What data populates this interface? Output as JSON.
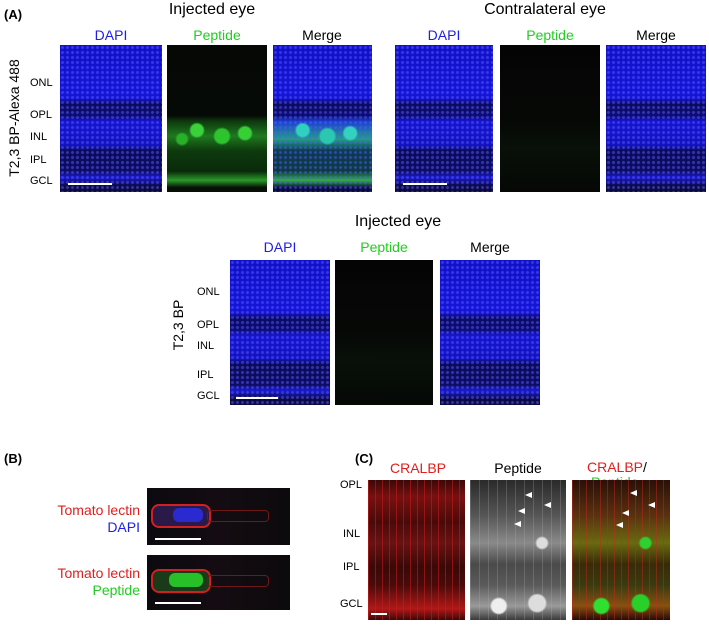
{
  "panel_a": {
    "label": "(A)",
    "row_label": "T2,3 BP-Alexa 488",
    "groups": [
      {
        "title": "Injected eye",
        "columns": [
          "DAPI",
          "Peptide",
          "Merge"
        ]
      },
      {
        "title": "Contralateral eye",
        "columns": [
          "DAPI",
          "Peptide",
          "Merge"
        ]
      }
    ],
    "layers": [
      "ONL",
      "OPL",
      "INL",
      "IPL",
      "GCL"
    ]
  },
  "panel_a2": {
    "title": "Injected eye",
    "row_label": "T2,3 BP",
    "columns": [
      "DAPI",
      "Peptide",
      "Merge"
    ],
    "layers": [
      "ONL",
      "OPL",
      "INL",
      "IPL",
      "GCL"
    ]
  },
  "panel_b": {
    "label": "(B)",
    "rows": [
      [
        "Tomato lectin",
        "DAPI"
      ],
      [
        "Tomato lectin",
        "Peptide"
      ]
    ]
  },
  "panel_c": {
    "label": "(C)",
    "columns": [
      "CRALBP",
      "Peptide"
    ],
    "merge_label": [
      "CRALBP",
      "/",
      "Peptide"
    ],
    "layers": [
      "OPL",
      "INL",
      "IPL",
      "GCL"
    ]
  }
}
